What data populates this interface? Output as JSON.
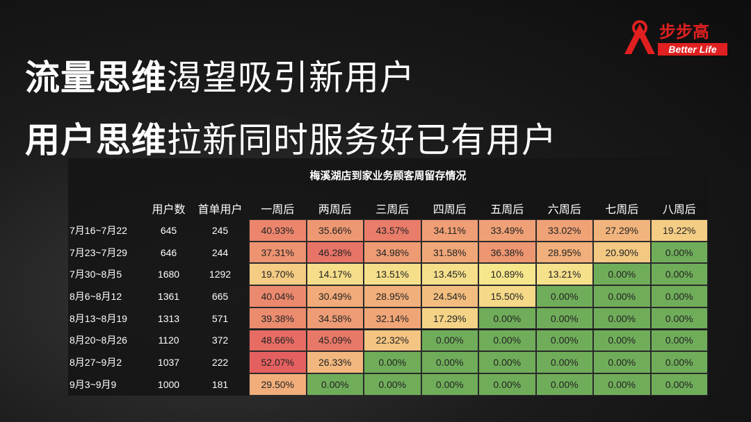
{
  "logo": {
    "brand": "步步高",
    "slogan": "Better Life"
  },
  "headline": [
    {
      "bold": "流量思维",
      "rest": "渴望吸引新用户"
    },
    {
      "bold": "用户思维",
      "rest": "拉新同时服务好已有用户"
    }
  ],
  "table": {
    "title": "梅溪湖店到家业务顾客周留存情况",
    "columns": [
      "用户数",
      "首单用户",
      "一周后",
      "两周后",
      "三周后",
      "四周后",
      "五周后",
      "六周后",
      "七周后",
      "八周后"
    ],
    "rows": [
      [
        "7月16~7月22",
        "645",
        "245",
        "40.93%",
        "35.66%",
        "43.57%",
        "34.11%",
        "33.49%",
        "33.02%",
        "27.29%",
        "19.22%"
      ],
      [
        "7月23~7月29",
        "646",
        "244",
        "37.31%",
        "46.28%",
        "34.98%",
        "31.58%",
        "36.38%",
        "28.95%",
        "20.90%",
        "0.00%"
      ],
      [
        "7月30~8月5",
        "1680",
        "1292",
        "19.70%",
        "14.17%",
        "13.51%",
        "13.45%",
        "10.89%",
        "13.21%",
        "0.00%",
        "0.00%"
      ],
      [
        "8月6~8月12",
        "1361",
        "665",
        "40.04%",
        "30.49%",
        "28.95%",
        "24.54%",
        "15.50%",
        "0.00%",
        "0.00%",
        "0.00%"
      ],
      [
        "8月13~8月19",
        "1313",
        "571",
        "39.38%",
        "34.58%",
        "32.14%",
        "17.29%",
        "0.00%",
        "0.00%",
        "0.00%",
        "0.00%"
      ],
      [
        "8月20~8月26",
        "1120",
        "372",
        "48.66%",
        "45.09%",
        "22.32%",
        "0.00%",
        "0.00%",
        "0.00%",
        "0.00%",
        "0.00%"
      ],
      [
        "8月27~9月2",
        "1037",
        "222",
        "52.07%",
        "26.33%",
        "0.00%",
        "0.00%",
        "0.00%",
        "0.00%",
        "0.00%",
        "0.00%"
      ],
      [
        "9月3~9月9",
        "1000",
        "181",
        "29.50%",
        "0.00%",
        "0.00%",
        "0.00%",
        "0.00%",
        "0.00%",
        "0.00%",
        "0.00%"
      ]
    ]
  }
}
